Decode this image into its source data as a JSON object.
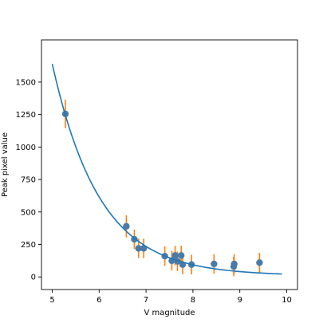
{
  "chart_data": {
    "type": "scatter",
    "title": "",
    "xlabel": "V magnitude",
    "ylabel": "Peak pixel value",
    "xlim": [
      4.77,
      10.23
    ],
    "ylim": [
      -97,
      1825
    ],
    "xticks": [
      5,
      6,
      7,
      8,
      9,
      10
    ],
    "yticks": [
      0,
      250,
      500,
      750,
      1000,
      1250,
      1500
    ],
    "ytick_labels": [
      "0",
      "250",
      "500",
      "750",
      "1000",
      "1250",
      "1500"
    ],
    "grid": false,
    "legend": "none",
    "series": [
      {
        "kind": "errorbar",
        "marker_color": "#4a7ba6",
        "errorbar_color": "#ff7f0e",
        "points": [
          {
            "x": 5.28,
            "y": 1255,
            "err": 110
          },
          {
            "x": 6.58,
            "y": 390,
            "err": 85
          },
          {
            "x": 6.75,
            "y": 290,
            "err": 75
          },
          {
            "x": 6.84,
            "y": 220,
            "err": 75
          },
          {
            "x": 6.95,
            "y": 220,
            "err": 75
          },
          {
            "x": 7.4,
            "y": 160,
            "err": 75
          },
          {
            "x": 7.55,
            "y": 125,
            "err": 75
          },
          {
            "x": 7.62,
            "y": 165,
            "err": 75
          },
          {
            "x": 7.67,
            "y": 120,
            "err": 75
          },
          {
            "x": 7.75,
            "y": 165,
            "err": 75
          },
          {
            "x": 7.78,
            "y": 95,
            "err": 75
          },
          {
            "x": 7.97,
            "y": 95,
            "err": 75
          },
          {
            "x": 8.45,
            "y": 100,
            "err": 75
          },
          {
            "x": 8.87,
            "y": 80,
            "err": 75
          },
          {
            "x": 8.88,
            "y": 100,
            "err": 75
          },
          {
            "x": 9.42,
            "y": 110,
            "err": 75
          }
        ]
      },
      {
        "kind": "line",
        "color": "#1f77b4",
        "curve": {
          "x0": 5.0,
          "x1": 9.9,
          "a": 1630,
          "b": 0.99,
          "c": 10
        }
      }
    ]
  }
}
